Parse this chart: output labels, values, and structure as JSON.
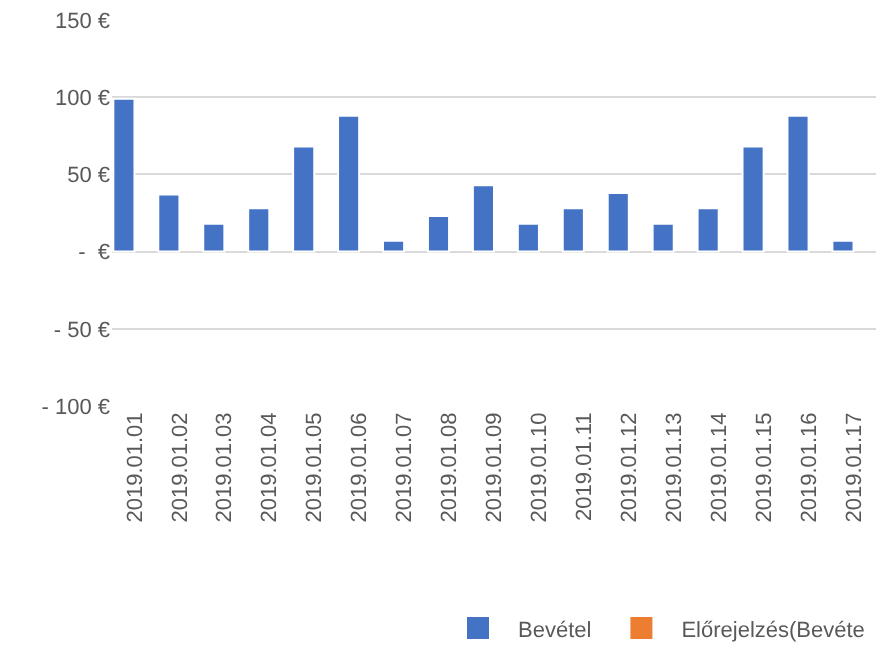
{
  "chart_data": {
    "type": "bar",
    "categories": [
      "2019.01.01",
      "2019.01.02",
      "2019.01.03",
      "2019.01.04",
      "2019.01.05",
      "2019.01.06",
      "2019.01.07",
      "2019.01.08",
      "2019.01.09",
      "2019.01.10",
      "2019.01.11",
      "2019.01.12",
      "2019.01.13",
      "2019.01.14",
      "2019.01.15",
      "2019.01.16",
      "2019.01.17"
    ],
    "series": [
      {
        "name": "Bevétel",
        "color": "#4472c4",
        "values": [
          99,
          37,
          18,
          28,
          68,
          88,
          7,
          23,
          43,
          18,
          28,
          38,
          18,
          28,
          68,
          88,
          7
        ]
      },
      {
        "name": "Előrejelzés(Bevéte",
        "color": "#ed7d31",
        "values": [
          null,
          null,
          null,
          null,
          null,
          null,
          null,
          null,
          null,
          null,
          null,
          null,
          null,
          null,
          null,
          null,
          null
        ]
      }
    ],
    "ylim": [
      -100,
      150
    ],
    "yticks": [
      {
        "value": -100,
        "label": "- 100 €"
      },
      {
        "value": -50,
        "label": "- 50 €"
      },
      {
        "value": 0,
        "label": "-  €"
      },
      {
        "value": 50,
        "label": "50 €"
      },
      {
        "value": 100,
        "label": "100 €"
      },
      {
        "value": 150,
        "label": "150 €"
      }
    ],
    "grid": "y",
    "legend": "bottom right"
  }
}
